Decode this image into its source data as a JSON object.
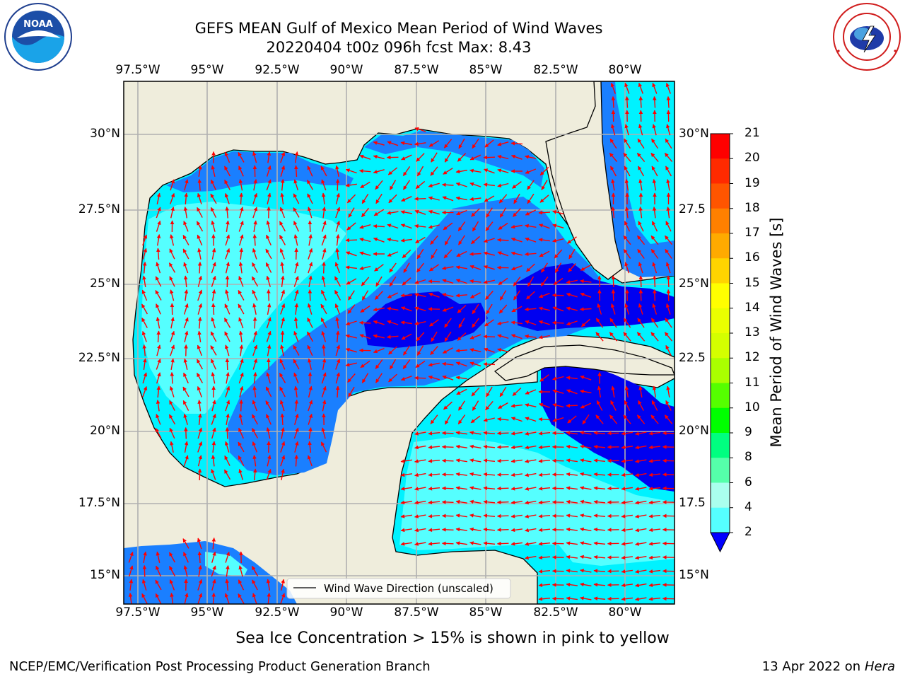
{
  "title": {
    "line1": "GEFS MEAN Gulf of Mexico Mean Period of Wind Waves",
    "line2": "20220404 t00z 096h fcst   Max: 8.43"
  },
  "lon_ticks": [
    "97.5°W",
    "95°W",
    "92.5°W",
    "90°W",
    "87.5°W",
    "85°W",
    "82.5°W",
    "80°W"
  ],
  "lat_ticks_left": [
    "30°N",
    "27.5°N",
    "25°N",
    "22.5°N",
    "20°N",
    "17.5°N",
    "15°N"
  ],
  "lat_ticks_right": [
    "30°N",
    "27.5",
    "25°N",
    "22.5",
    "20°N",
    "17.5",
    "15°N"
  ],
  "colorbar": {
    "title": "Mean Period of Wind Waves [s]",
    "labels": [
      "21",
      "20",
      "19",
      "18",
      "17",
      "16",
      "15",
      "14",
      "13",
      "12",
      "11",
      "10",
      "9",
      "8",
      "6",
      "4",
      "2"
    ],
    "colors": [
      "#ff0000",
      "#ff2a00",
      "#ff5500",
      "#ff8000",
      "#ffaa00",
      "#ffd400",
      "#ffff00",
      "#eaff00",
      "#d4ff00",
      "#aaff00",
      "#55ff00",
      "#00ff00",
      "#00ff80",
      "#55ffaa",
      "#aaffee",
      "#55ffff",
      "#00ffff",
      "#0080ff",
      "#0000ff"
    ],
    "extend_color": "#0000ff"
  },
  "legend": {
    "label": "Wind Wave Direction (unscaled)"
  },
  "note": "Sea Ice Concentration > 15% is shown in pink to yellow",
  "footer": {
    "left": "NCEP/EMC/Verification Post Processing Product Generation Branch",
    "date": "13 Apr 2022 on ",
    "host": "Hera"
  },
  "colors": {
    "land": "#efeddc",
    "coast": "#000000",
    "grid": "#b0b0b0",
    "arrow": "#ff0000",
    "band_2_4": "#1a7fff",
    "band_4_6": "#00f2ff",
    "band_6_8": "#55ffff",
    "band_below_2": "#0000f0"
  },
  "logos": {
    "left": "NOAA",
    "right": "NATIONAL WEATHER SERVICE"
  }
}
